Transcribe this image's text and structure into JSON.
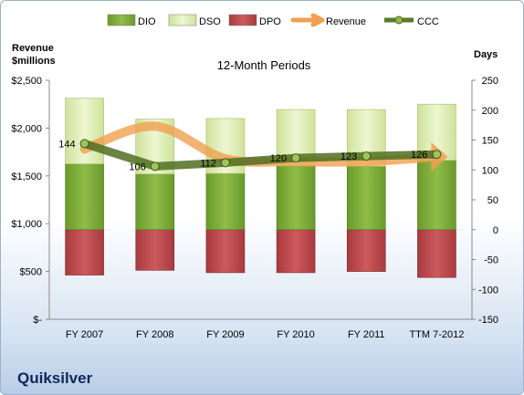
{
  "chart_data": {
    "type": "bar",
    "title": "12-Month Periods",
    "categories": [
      "FY 2007",
      "FY 2008",
      "FY 2009",
      "FY 2010",
      "FY 2011",
      "TTM 7-2012"
    ],
    "left_axis": {
      "label_line1": "Revenue",
      "label_line2": "$millions",
      "range": [
        0,
        2500
      ],
      "ticks": [
        0,
        500,
        1000,
        1500,
        2000,
        2500
      ],
      "tick_labels": [
        "$-",
        "$500",
        "$1,000",
        "$1,500",
        "$2,000",
        "$2,500"
      ]
    },
    "right_axis": {
      "label": "Days",
      "range": [
        -150,
        250
      ],
      "ticks": [
        -150,
        -100,
        -50,
        0,
        50,
        100,
        150,
        200,
        250
      ],
      "tick_labels": [
        "-150",
        "-100",
        "-50",
        "0",
        "50",
        "100",
        "150",
        "200",
        "250"
      ]
    },
    "legend_position": "top",
    "legend": [
      {
        "name": "DIO",
        "color": "#7fa83c"
      },
      {
        "name": "DSO",
        "color": "#d8e8a8"
      },
      {
        "name": "DPO",
        "color": "#b84448"
      },
      {
        "name": "Revenue",
        "color": "#f0a050"
      },
      {
        "name": "CCC",
        "color": "#5a7a28"
      }
    ],
    "series": [
      {
        "name": "DIO",
        "axis": "right",
        "values": [
          110,
          93,
          94,
          107,
          106,
          116
        ]
      },
      {
        "name": "DSO",
        "axis": "right",
        "values": [
          110,
          92,
          92,
          94,
          95,
          94
        ]
      },
      {
        "name": "DPO",
        "axis": "right",
        "values": [
          -76,
          -68,
          -72,
          -72,
          -70,
          -80
        ]
      },
      {
        "name": "Revenue",
        "axis": "left",
        "values": [
          1780,
          2020,
          1680,
          1650,
          1650,
          1700
        ]
      },
      {
        "name": "CCC",
        "axis": "right",
        "values": [
          144,
          106,
          112,
          120,
          123,
          126
        ]
      }
    ],
    "ccc_labels": [
      "144",
      "106",
      "112",
      "120",
      "123",
      "126"
    ]
  },
  "company": "Quiksilver"
}
